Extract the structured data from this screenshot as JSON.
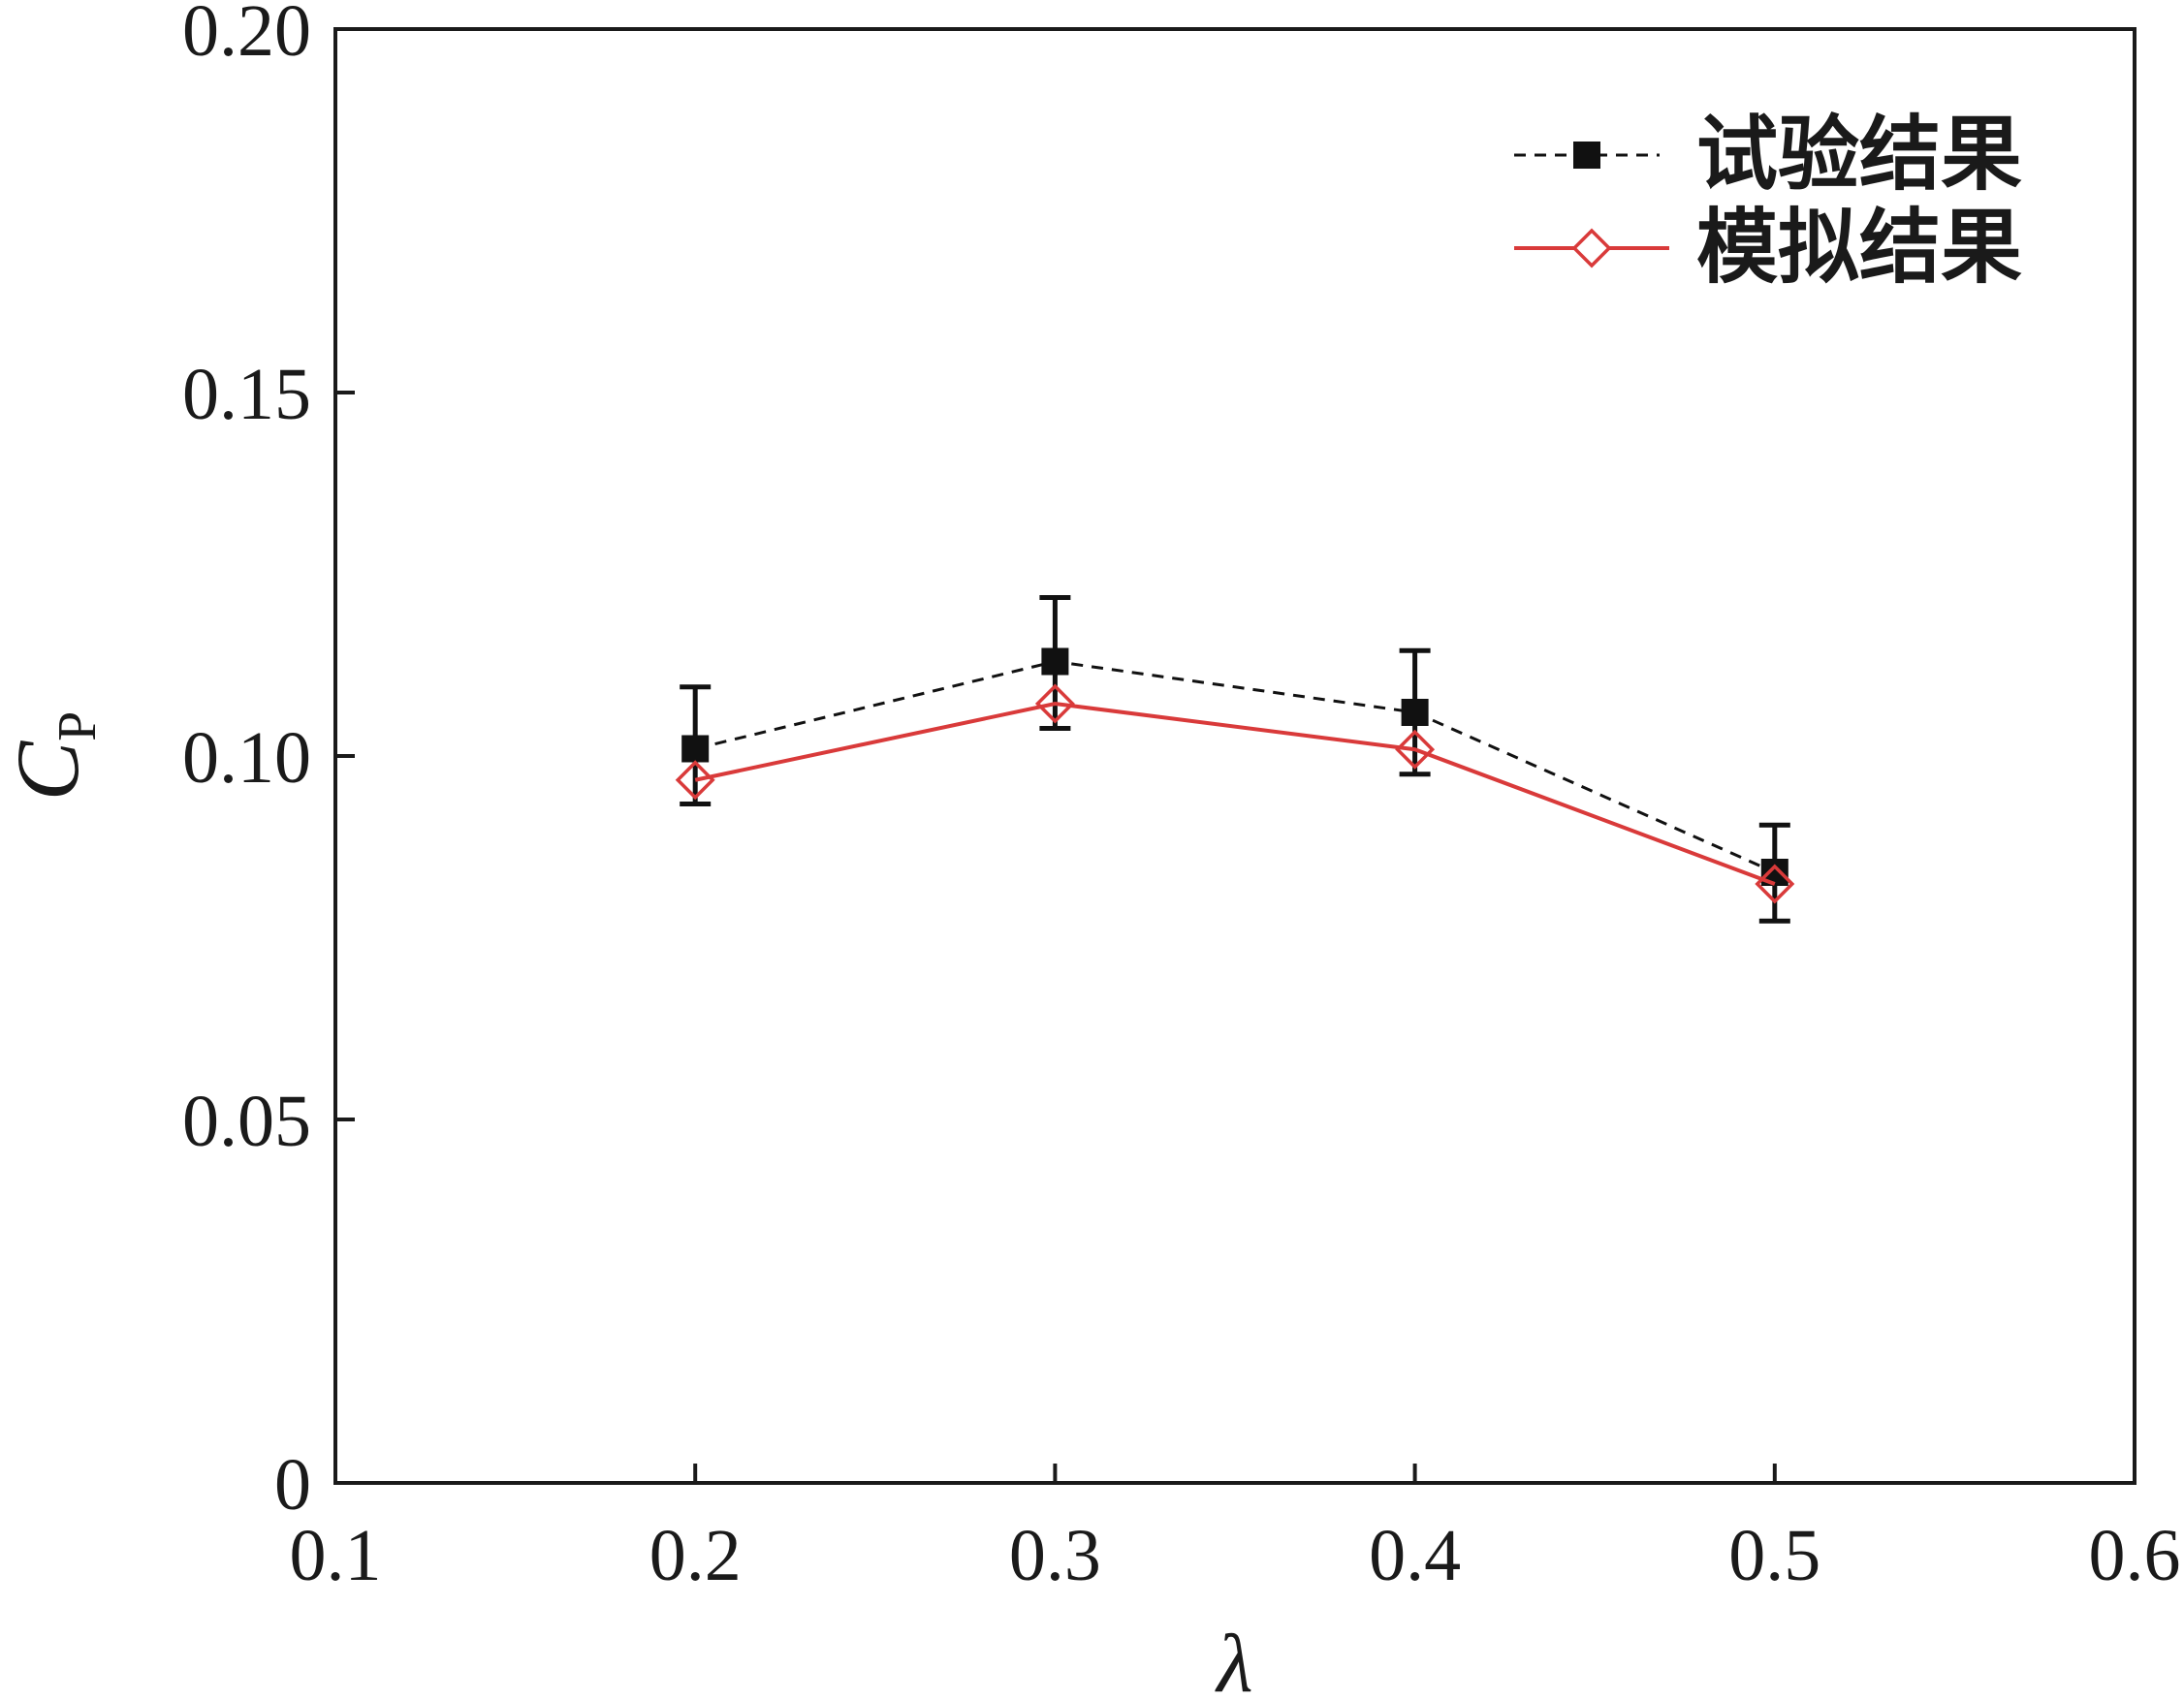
{
  "chart_data": {
    "type": "line",
    "xlabel": "λ",
    "ylabel": {
      "main": "C",
      "sub": "P"
    },
    "xlim": [
      0.1,
      0.6
    ],
    "ylim": [
      0,
      0.2
    ],
    "xticks": [
      0.1,
      0.2,
      0.3,
      0.4,
      0.5,
      0.6
    ],
    "xtick_labels": [
      "0.1",
      "0.2",
      "0.3",
      "0.4",
      "0.5",
      "0.6"
    ],
    "yticks": [
      0,
      0.05,
      0.1,
      0.15,
      0.2
    ],
    "ytick_labels": [
      "0",
      "0.05",
      "0.10",
      "0.15",
      "0.20"
    ],
    "grid": false,
    "legend_position": "top-right",
    "series": [
      {
        "name": "试验结果",
        "color": "#111111",
        "line_style": "dashed",
        "marker": "filled-square",
        "x": [
          0.2,
          0.3,
          0.4,
          0.5
        ],
        "y": [
          0.101,
          0.113,
          0.106,
          0.084
        ],
        "error_upper": [
          0.1095,
          0.1218,
          0.1145,
          0.0905
        ],
        "error_lower": [
          0.0934,
          0.1038,
          0.0975,
          0.0773
        ]
      },
      {
        "name": "模拟结果",
        "color": "#d93a3a",
        "line_style": "solid",
        "marker": "open-diamond",
        "x": [
          0.2,
          0.3,
          0.4,
          0.5
        ],
        "y": [
          0.0967,
          0.1072,
          0.1009,
          0.0824
        ]
      }
    ]
  }
}
